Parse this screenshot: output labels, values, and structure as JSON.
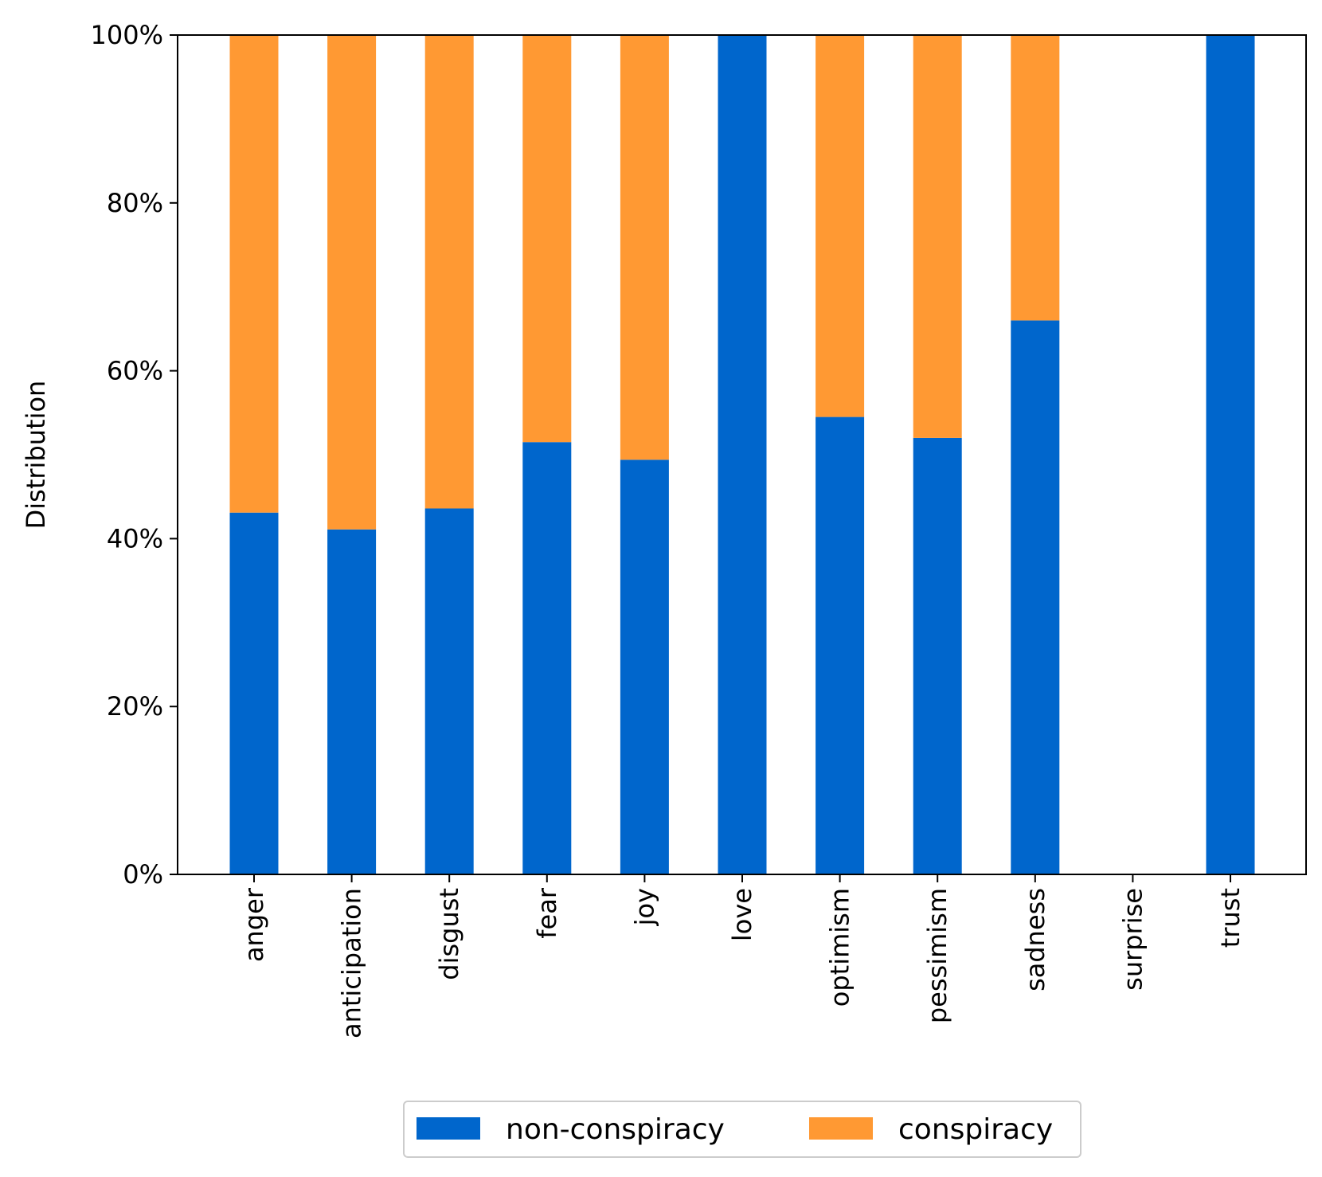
{
  "chart_data": {
    "type": "bar",
    "stacked": true,
    "normalized": true,
    "categories": [
      "anger",
      "anticipation",
      "disgust",
      "fear",
      "joy",
      "love",
      "optimism",
      "pessimism",
      "sadness",
      "surprise",
      "trust"
    ],
    "series": [
      {
        "name": "non-conspiracy",
        "color": "#0066cc",
        "values": [
          43.1,
          41.1,
          43.6,
          51.5,
          49.4,
          100,
          54.5,
          52.0,
          66.0,
          0,
          100
        ]
      },
      {
        "name": "conspiracy",
        "color": "#ff9933",
        "values": [
          56.9,
          58.9,
          56.4,
          48.5,
          50.6,
          0,
          45.5,
          48.0,
          34.0,
          0,
          0
        ]
      }
    ],
    "title": "",
    "xlabel": "",
    "ylabel": "Distribution",
    "ylim": [
      0,
      100
    ],
    "yticks": [
      0,
      20,
      40,
      60,
      80,
      100
    ],
    "ytick_labels": [
      "0%",
      "20%",
      "40%",
      "60%",
      "80%",
      "100%"
    ],
    "grid": false,
    "legend": {
      "placement": "bottom-center",
      "entries": [
        "non-conspiracy",
        "conspiracy"
      ]
    }
  }
}
